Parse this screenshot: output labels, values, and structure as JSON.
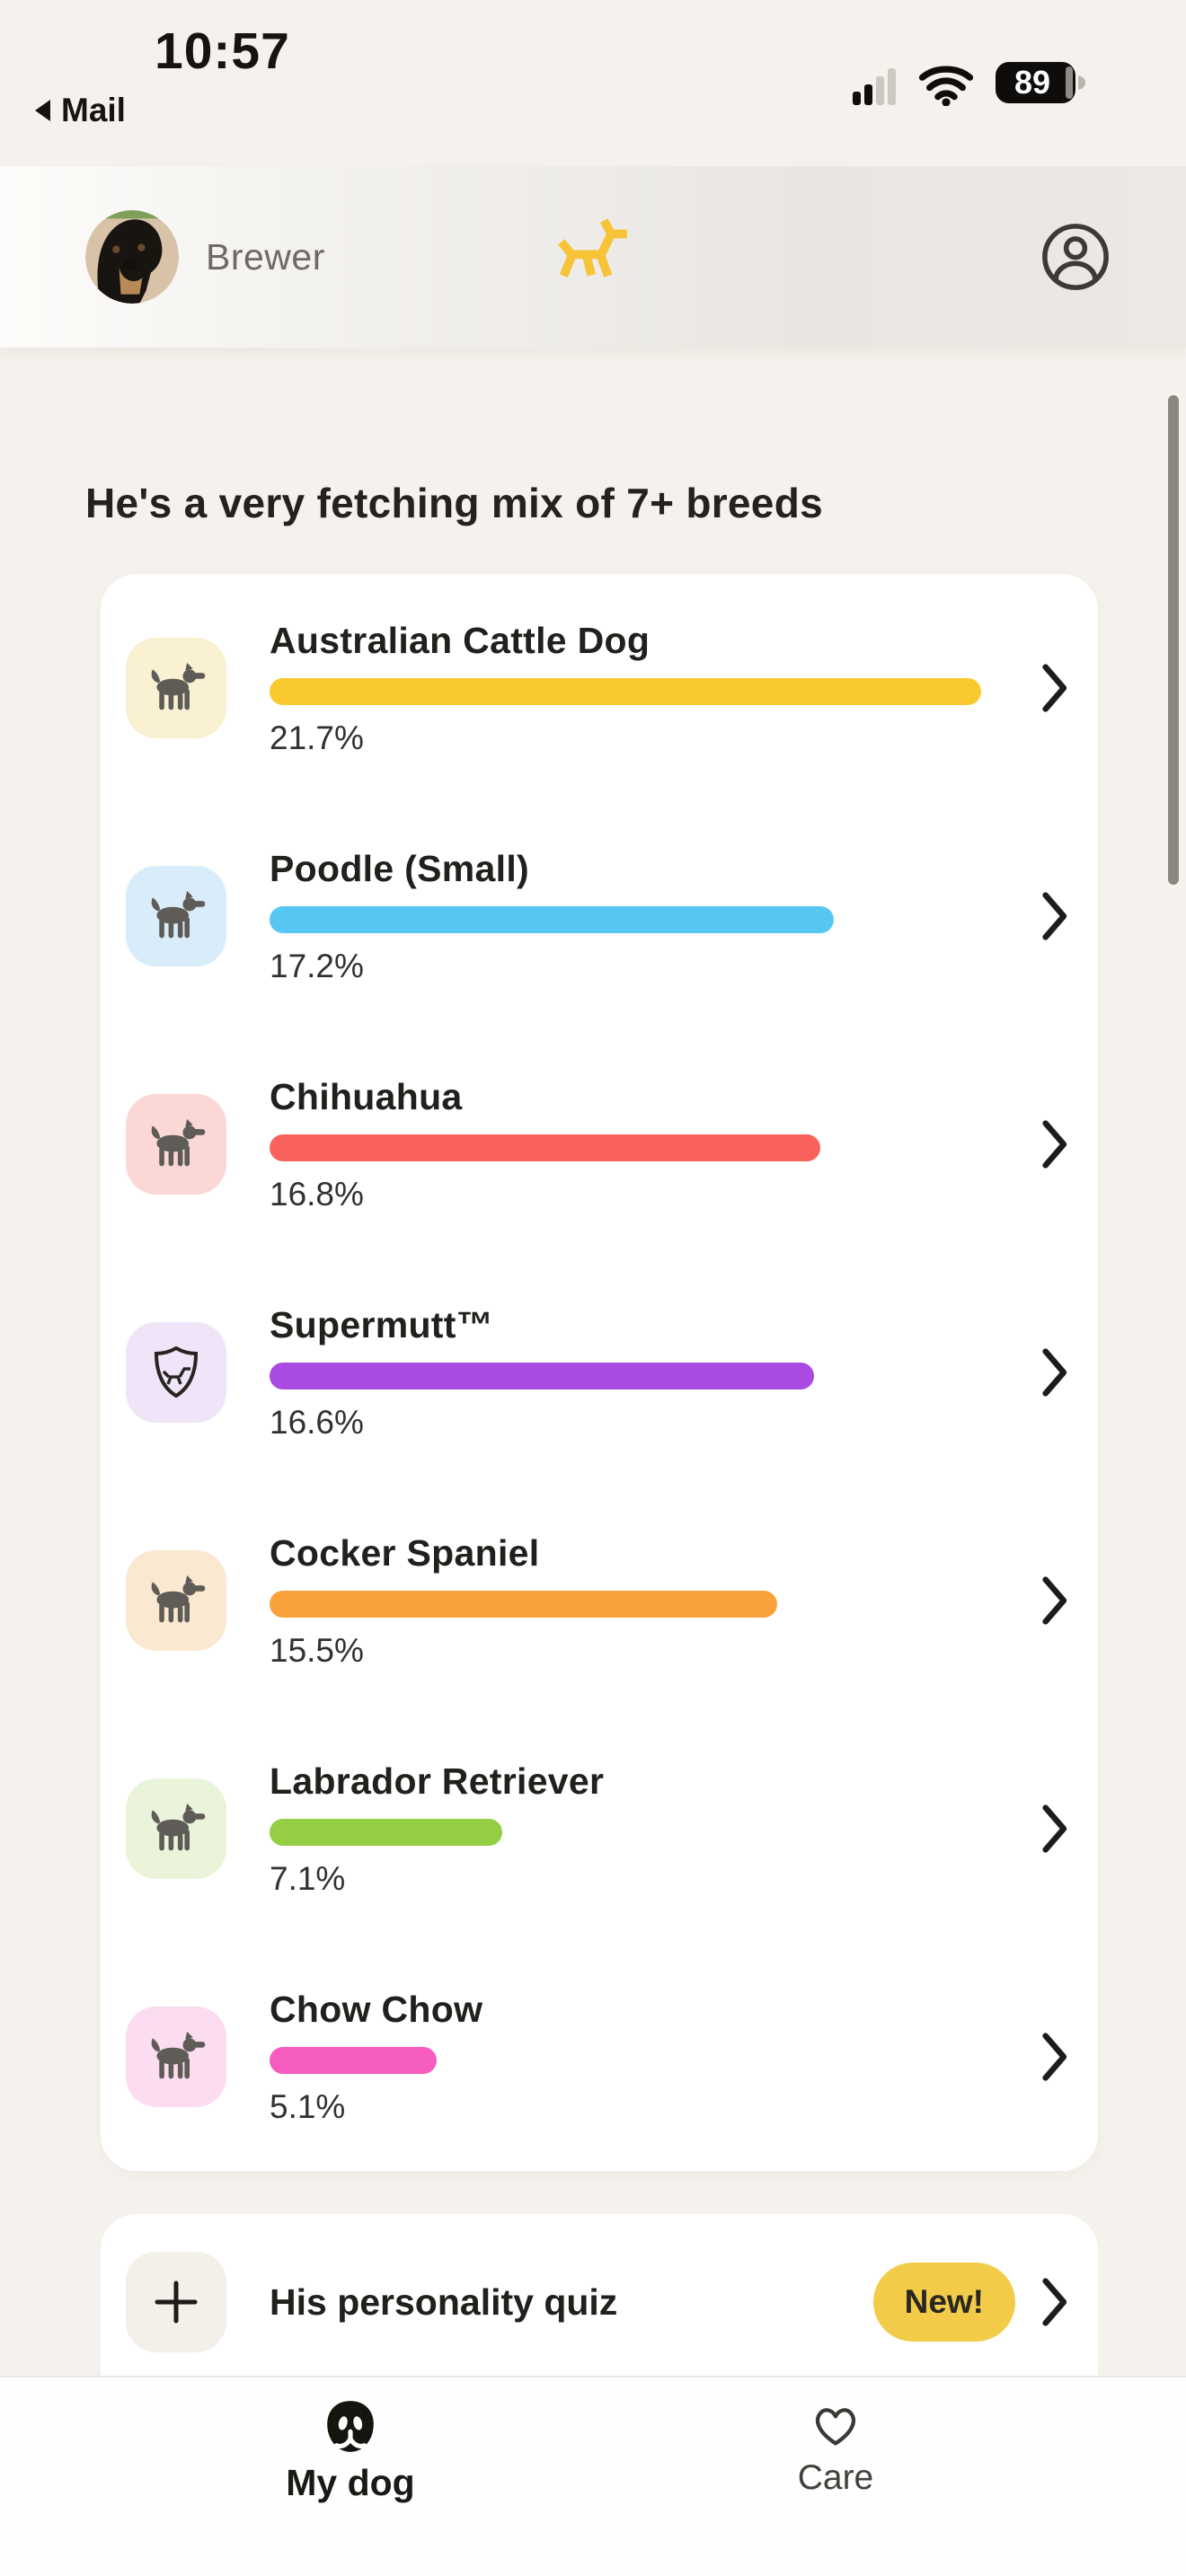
{
  "status_bar": {
    "time": "10:57",
    "back_label": "Mail",
    "battery_level": "89"
  },
  "header": {
    "dog_name": "Brewer"
  },
  "main": {
    "title": "He's a very fetching mix of 7+ breeds",
    "breeds": [
      {
        "name": "Australian Cattle Dog",
        "value": 21.7,
        "percent": "21.7%",
        "bar_color": "#F9C92F",
        "tile_color": "#FAF0D2",
        "icon": "dog"
      },
      {
        "name": "Poodle (Small)",
        "value": 17.2,
        "percent": "17.2%",
        "bar_color": "#56C7F3",
        "tile_color": "#D8ECFA",
        "icon": "dog"
      },
      {
        "name": "Chihuahua",
        "value": 16.8,
        "percent": "16.8%",
        "bar_color": "#F9625C",
        "tile_color": "#FBD8D6",
        "icon": "dog"
      },
      {
        "name": "Supermutt™",
        "value": 16.6,
        "percent": "16.6%",
        "bar_color": "#A94AE0",
        "tile_color": "#F0E4F8",
        "icon": "shield"
      },
      {
        "name": "Cocker Spaniel",
        "value": 15.5,
        "percent": "15.5%",
        "bar_color": "#F9A23B",
        "tile_color": "#FAE8D1",
        "icon": "dog"
      },
      {
        "name": "Labrador Retriever",
        "value": 7.1,
        "percent": "7.1%",
        "bar_color": "#93CE43",
        "tile_color": "#EAF4DB",
        "icon": "dog"
      },
      {
        "name": "Chow Chow",
        "value": 5.1,
        "percent": "5.1%",
        "bar_color": "#F65BBF",
        "tile_color": "#FBDCF0",
        "icon": "dog"
      }
    ],
    "quiz": {
      "title": "His personality quiz",
      "badge": "New!",
      "badge_color": "#F2CC49"
    }
  },
  "tab_bar": {
    "items": [
      {
        "label": "My dog",
        "active": true
      },
      {
        "label": "Care",
        "active": false
      }
    ]
  },
  "colors": {
    "brand_yellow": "#F7C337",
    "page_bg": "#F5F1EC",
    "card_bg": "#FFFFFF"
  }
}
